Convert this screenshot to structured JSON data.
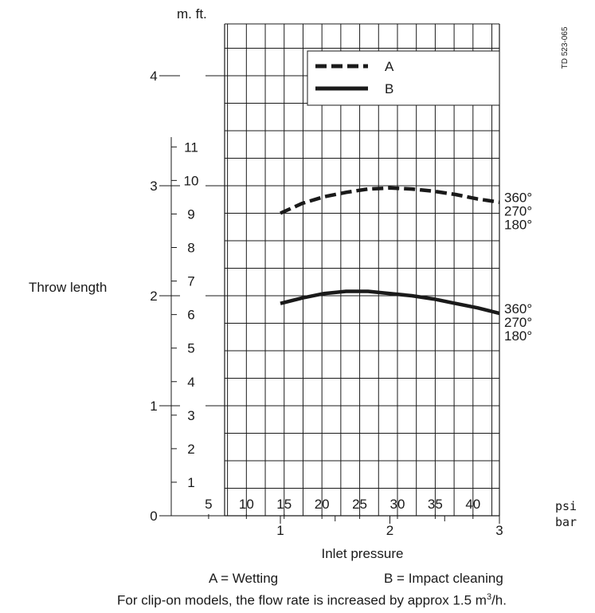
{
  "chart_data": {
    "type": "line",
    "xlabel": "Inlet pressure",
    "ylabel": "Throw length",
    "x_unit_primary": "bar",
    "x_unit_secondary": "psi",
    "y_unit_primary": "m.",
    "y_unit_secondary": "ft.",
    "reference": "TD 523-065",
    "xlim": [
      0.5,
      3.0
    ],
    "ylim": [
      0,
      4.5
    ],
    "x_ticks_bar": [
      "1",
      "2",
      "3"
    ],
    "x_ticks_psi": [
      "5",
      "10",
      "15",
      "20",
      "25",
      "30",
      "35",
      "40"
    ],
    "y_ticks_m": [
      "0",
      "1",
      "2",
      "3",
      "4"
    ],
    "y_ticks_ft": [
      "1",
      "2",
      "3",
      "4",
      "5",
      "6",
      "7",
      "8",
      "9",
      "10",
      "11"
    ],
    "series": [
      {
        "name": "A",
        "style": "dashed",
        "x": [
          1.0,
          1.2,
          1.4,
          1.6,
          1.8,
          2.0,
          2.2,
          2.4,
          2.6,
          2.8,
          3.0
        ],
        "y": [
          2.75,
          2.84,
          2.9,
          2.94,
          2.97,
          2.98,
          2.97,
          2.95,
          2.92,
          2.88,
          2.85
        ]
      },
      {
        "name": "B",
        "style": "solid",
        "x": [
          1.0,
          1.2,
          1.4,
          1.6,
          1.8,
          2.0,
          2.2,
          2.4,
          2.6,
          2.8,
          3.0
        ],
        "y": [
          1.93,
          1.98,
          2.02,
          2.04,
          2.04,
          2.02,
          2.0,
          1.97,
          1.93,
          1.89,
          1.84
        ]
      }
    ],
    "curve_labels": {
      "A": [
        "360°",
        "270°",
        "180°"
      ],
      "B": [
        "360°",
        "270°",
        "180°"
      ]
    },
    "legend": {
      "placement": "top-right",
      "entries": [
        "A",
        "B"
      ]
    },
    "grid": true
  },
  "captions": {
    "legend_explain_a": "A = Wetting",
    "legend_explain_b": "B = Impact cleaning",
    "note_main": "For clip-on models, the flow rate is increased by approx 1.5 m",
    "note_sup": "3",
    "note_tail": "/h."
  }
}
